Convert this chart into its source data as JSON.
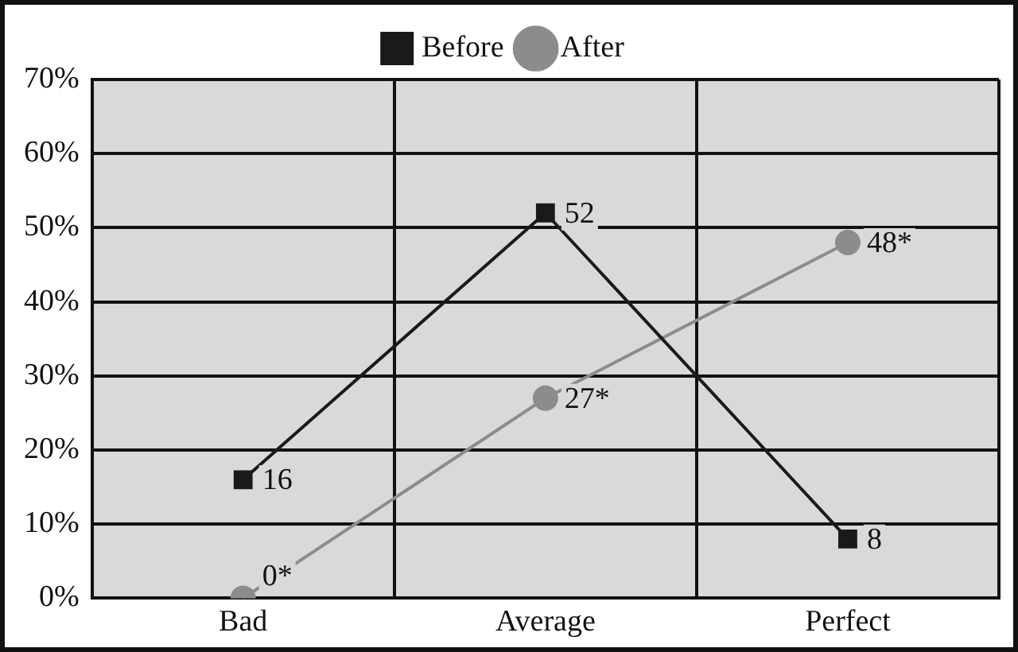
{
  "chart_data": {
    "type": "line",
    "categories": [
      "Bad",
      "Average",
      "Perfect"
    ],
    "series": [
      {
        "name": "Before",
        "color": "#1a1a1a",
        "marker": "square",
        "values": [
          16,
          52,
          8
        ],
        "value_labels": [
          "16",
          "52",
          "8"
        ]
      },
      {
        "name": "After",
        "color": "#8c8c8c",
        "marker": "circle",
        "values": [
          0,
          27,
          48
        ],
        "value_labels": [
          "0*",
          "27*",
          "48*"
        ]
      }
    ],
    "ylim": [
      0,
      70
    ],
    "yticks": [
      {
        "value": 0,
        "label": "0%"
      },
      {
        "value": 10,
        "label": "10%"
      },
      {
        "value": 20,
        "label": "20%"
      },
      {
        "value": 30,
        "label": "30%"
      },
      {
        "value": 40,
        "label": "40%"
      },
      {
        "value": 50,
        "label": "50%"
      },
      {
        "value": 60,
        "label": "60%"
      },
      {
        "value": 70,
        "label": "70%"
      }
    ],
    "grid": true,
    "legend": "top"
  }
}
